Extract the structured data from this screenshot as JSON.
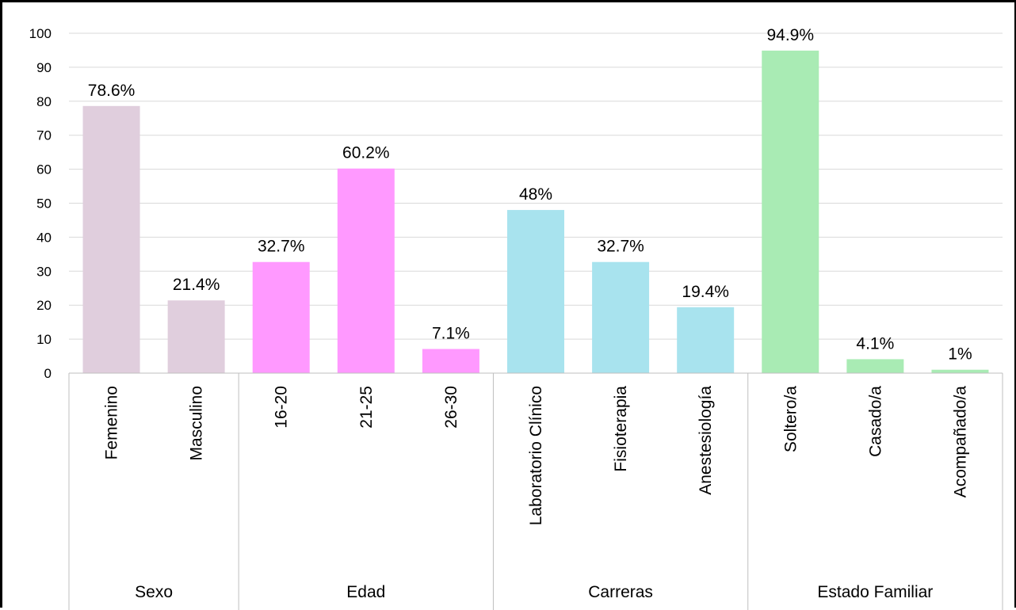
{
  "chart_data": {
    "type": "bar",
    "ylim": [
      0,
      100
    ],
    "yticks": [
      0,
      10,
      20,
      30,
      40,
      50,
      60,
      70,
      80,
      90,
      100
    ],
    "grid": true,
    "legend": "none",
    "groups": [
      {
        "name": "Sexo",
        "color": "#e0cedd",
        "bars": [
          {
            "category": "Femenino",
            "value": 78.6,
            "label": "78.6%"
          },
          {
            "category": "Masculino",
            "value": 21.4,
            "label": "21.4%"
          }
        ]
      },
      {
        "name": "Edad",
        "color": "#ff99ff",
        "bars": [
          {
            "category": "16-20",
            "value": 32.7,
            "label": "32.7%"
          },
          {
            "category": "21-25",
            "value": 60.2,
            "label": "60.2%"
          },
          {
            "category": "26-30",
            "value": 7.1,
            "label": "7.1%"
          }
        ]
      },
      {
        "name": "Carreras",
        "color": "#a8e3ee",
        "bars": [
          {
            "category": "Laboratorio Clínico",
            "value": 48,
            "label": "48%"
          },
          {
            "category": "Fisioterapia",
            "value": 32.7,
            "label": "32.7%"
          },
          {
            "category": "Anestesiología",
            "value": 19.4,
            "label": "19.4%"
          }
        ]
      },
      {
        "name": "Estado Familiar",
        "color": "#a9ebb4",
        "bars": [
          {
            "category": "Soltero/a",
            "value": 94.9,
            "label": "94.9%"
          },
          {
            "category": "Casado/a",
            "value": 4.1,
            "label": "4.1%"
          },
          {
            "category": "Acompañado/a",
            "value": 1,
            "label": "1%"
          }
        ]
      }
    ],
    "colors": {
      "gridline": "#d9d9d9",
      "axis": "#bfbfbf"
    }
  }
}
